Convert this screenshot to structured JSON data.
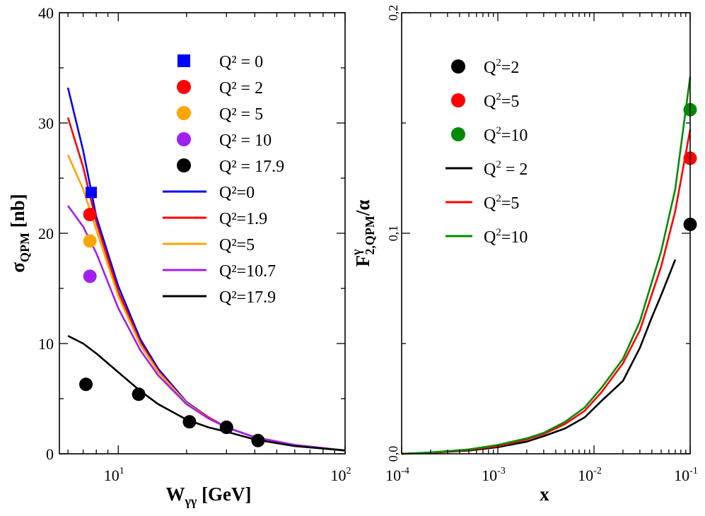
{
  "chart_data": [
    {
      "type": "line",
      "panel": "left",
      "title": "",
      "xlabel": "W",
      "xlabel_sub": "γγ",
      "xlabel_unit": " [GeV]",
      "ylabel": "σ",
      "ylabel_sub": "QPM",
      "ylabel_unit": " [nb]",
      "xscale": "log",
      "xlim": [
        5.5,
        100
      ],
      "ylim": [
        0,
        40
      ],
      "x_ticks": [
        {
          "base": "10",
          "exp": "1",
          "value": 10
        },
        {
          "base": "10",
          "exp": "2",
          "value": 100
        }
      ],
      "y_ticks": [
        {
          "label": "0",
          "value": 0
        },
        {
          "label": "10",
          "value": 10
        },
        {
          "label": "20",
          "value": 20
        },
        {
          "label": "30",
          "value": 30
        },
        {
          "label": "40",
          "value": 40
        }
      ],
      "legend_position": "top-right",
      "markers": [
        {
          "name": "Q² = 0",
          "shape": "square",
          "color": "#0000ff",
          "points": [
            [
              7.6,
              23.7
            ]
          ]
        },
        {
          "name": "Q² = 2",
          "shape": "circle",
          "color": "#ff0000",
          "points": [
            [
              7.5,
              21.7
            ]
          ]
        },
        {
          "name": " Q² = 5",
          "shape": "circle",
          "color": "#ffa500",
          "points": [
            [
              7.5,
              19.3
            ]
          ]
        },
        {
          "name": "Q² = 10",
          "shape": "circle",
          "color": "#a020f0",
          "points": [
            [
              7.5,
              16.1
            ],
            [
              30,
              2.4
            ]
          ]
        },
        {
          "name": "Q² = 17.9",
          "shape": "circle",
          "color": "#000000",
          "points": [
            [
              7.2,
              6.3
            ],
            [
              12.3,
              5.4
            ],
            [
              20.6,
              2.9
            ],
            [
              30,
              2.4
            ],
            [
              41.3,
              1.2
            ]
          ]
        }
      ],
      "series": [
        {
          "name": "Q²=0",
          "color": "#0000ff",
          "points": [
            [
              6,
              33.2
            ],
            [
              7,
              27.5
            ],
            [
              8,
              21.5
            ],
            [
              10,
              15.2
            ],
            [
              12.5,
              10.4
            ],
            [
              15,
              7.7
            ],
            [
              20,
              4.7
            ],
            [
              25,
              3.3
            ],
            [
              30,
              2.4
            ],
            [
              40,
              1.5
            ],
            [
              60,
              0.8
            ],
            [
              100,
              0.3
            ]
          ]
        },
        {
          "name": "Q²=1.9",
          "color": "#ff0000",
          "points": [
            [
              6,
              30.5
            ],
            [
              7,
              26
            ],
            [
              8,
              21
            ],
            [
              10,
              14.7
            ],
            [
              12.5,
              10.1
            ],
            [
              15,
              7.5
            ],
            [
              20,
              4.6
            ],
            [
              25,
              3.3
            ],
            [
              30,
              2.4
            ],
            [
              40,
              1.5
            ],
            [
              60,
              0.8
            ],
            [
              100,
              0.3
            ]
          ]
        },
        {
          "name": "Q²=5",
          "color": "#ffa500",
          "points": [
            [
              6,
              27.1
            ],
            [
              7,
              24
            ],
            [
              8,
              20.3
            ],
            [
              10,
              14.3
            ],
            [
              12.5,
              9.9
            ],
            [
              15,
              7.4
            ],
            [
              20,
              4.6
            ],
            [
              25,
              3.2
            ],
            [
              30,
              2.4
            ],
            [
              40,
              1.5
            ],
            [
              60,
              0.8
            ],
            [
              100,
              0.3
            ]
          ]
        },
        {
          "name": "Q²=10.7",
          "color": "#a020f0",
          "points": [
            [
              6,
              22.5
            ],
            [
              7,
              20.6
            ],
            [
              8,
              18.2
            ],
            [
              10,
              13.2
            ],
            [
              12.5,
              9.4
            ],
            [
              15,
              7.1
            ],
            [
              20,
              4.5
            ],
            [
              25,
              3.2
            ],
            [
              30,
              2.4
            ],
            [
              40,
              1.5
            ],
            [
              60,
              0.8
            ],
            [
              100,
              0.3
            ]
          ]
        },
        {
          "name": "Q²=17.9",
          "color": "#000000",
          "points": [
            [
              6,
              10.7
            ],
            [
              7,
              10
            ],
            [
              8,
              9.1
            ],
            [
              10,
              7.4
            ],
            [
              12.5,
              5.7
            ],
            [
              15,
              4.5
            ],
            [
              20,
              3.1
            ],
            [
              25,
              2.4
            ],
            [
              30,
              2
            ],
            [
              40,
              1.3
            ],
            [
              60,
              0.7
            ],
            [
              100,
              0.3
            ]
          ]
        }
      ]
    },
    {
      "type": "line",
      "panel": "right",
      "title": "",
      "xlabel": "x",
      "ylabel": "F",
      "ylabel_sup": "γ",
      "ylabel_sub": "2,QPM",
      "ylabel_tail": "/α",
      "xscale": "log",
      "xlim": [
        0.0001,
        0.1
      ],
      "ylim": [
        0,
        0.2
      ],
      "x_ticks": [
        {
          "base": "10",
          "exp": "-4",
          "value": 0.0001
        },
        {
          "base": "10",
          "exp": "-3",
          "value": 0.001
        },
        {
          "base": "10",
          "exp": "-2",
          "value": 0.01
        },
        {
          "base": "10",
          "exp": "-1",
          "value": 0.1
        }
      ],
      "y_ticks": [
        {
          "label": "0,0",
          "value": 0
        },
        {
          "label": "0,1",
          "value": 0.1
        },
        {
          "label": "0,2",
          "value": 0.2
        }
      ],
      "legend_position": "top-left",
      "markers": [
        {
          "name_base": "Q",
          "name_sup": "2",
          "name_rest": "=2",
          "shape": "circle",
          "color": "#000000",
          "points": [
            [
              0.1,
              0.104
            ]
          ]
        },
        {
          "name_base": "Q",
          "name_sup": "2",
          "name_rest": "=5",
          "shape": "circle",
          "color": "#ff0000",
          "points": [
            [
              0.1,
              0.134
            ]
          ]
        },
        {
          "name_base": "Q",
          "name_sup": "2",
          "name_rest": "=10",
          "shape": "circle",
          "color": "#008b00",
          "points": [
            [
              0.1,
              0.156
            ]
          ]
        }
      ],
      "series": [
        {
          "name_base": "Q",
          "name_sup": "2",
          "name_rest": " = 2",
          "color": "#000000",
          "points": [
            [
              0.0001,
              0
            ],
            [
              0.0002,
              0.0005
            ],
            [
              0.0005,
              0.0015
            ],
            [
              0.001,
              0.003
            ],
            [
              0.002,
              0.0055
            ],
            [
              0.003,
              0.008
            ],
            [
              0.005,
              0.0115
            ],
            [
              0.008,
              0.0165
            ],
            [
              0.012,
              0.024
            ],
            [
              0.02,
              0.033
            ],
            [
              0.03,
              0.048
            ],
            [
              0.04,
              0.062
            ],
            [
              0.05,
              0.072
            ],
            [
              0.07,
              0.088
            ]
          ]
        },
        {
          "name_base": "Q",
          "name_sup": "2",
          "name_rest": "=5",
          "color": "#ff0000",
          "points": [
            [
              0.0001,
              0
            ],
            [
              0.0002,
              0.0005
            ],
            [
              0.0005,
              0.0018
            ],
            [
              0.001,
              0.0035
            ],
            [
              0.002,
              0.0065
            ],
            [
              0.003,
              0.009
            ],
            [
              0.005,
              0.0135
            ],
            [
              0.008,
              0.0195
            ],
            [
              0.012,
              0.028
            ],
            [
              0.02,
              0.041
            ],
            [
              0.03,
              0.056
            ],
            [
              0.05,
              0.085
            ],
            [
              0.07,
              0.11
            ],
            [
              0.1,
              0.147
            ]
          ]
        },
        {
          "name_base": "Q",
          "name_sup": "2",
          "name_rest": "=10",
          "color": "#008b00",
          "points": [
            [
              0.0001,
              0
            ],
            [
              0.0002,
              0.0006
            ],
            [
              0.0005,
              0.002
            ],
            [
              0.001,
              0.004
            ],
            [
              0.002,
              0.007
            ],
            [
              0.003,
              0.0095
            ],
            [
              0.005,
              0.0145
            ],
            [
              0.008,
              0.021
            ],
            [
              0.012,
              0.03
            ],
            [
              0.02,
              0.043
            ],
            [
              0.03,
              0.06
            ],
            [
              0.05,
              0.092
            ],
            [
              0.07,
              0.12
            ],
            [
              0.1,
              0.171
            ]
          ]
        }
      ]
    }
  ]
}
